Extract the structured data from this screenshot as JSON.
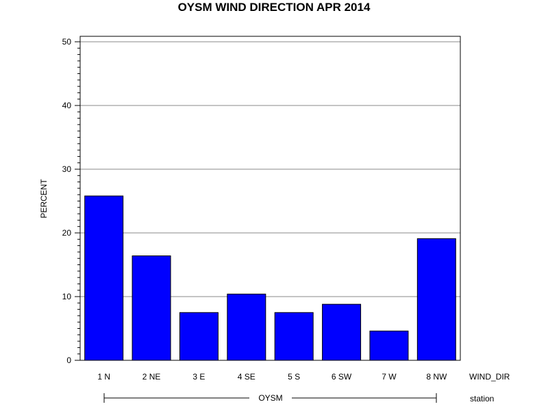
{
  "chart_data": {
    "type": "bar",
    "title": "OYSM WIND DIRECTION APR 2014",
    "ylabel": "PERCENT",
    "xlabel": "WIND_DIR",
    "group_label": "OYSM",
    "group_axis_label": "station",
    "ylim": [
      0,
      50
    ],
    "yticks": [
      "0",
      "10",
      "20",
      "30",
      "40",
      "50"
    ],
    "grid": true,
    "bar_color": "#0000ff",
    "categories": [
      "1 N",
      "2 NE",
      "3 E",
      "4 SE",
      "5 S",
      "6 SW",
      "7 W",
      "8 NW"
    ],
    "values": [
      25.8,
      16.4,
      7.5,
      10.4,
      7.5,
      8.8,
      4.6,
      19.1
    ]
  }
}
